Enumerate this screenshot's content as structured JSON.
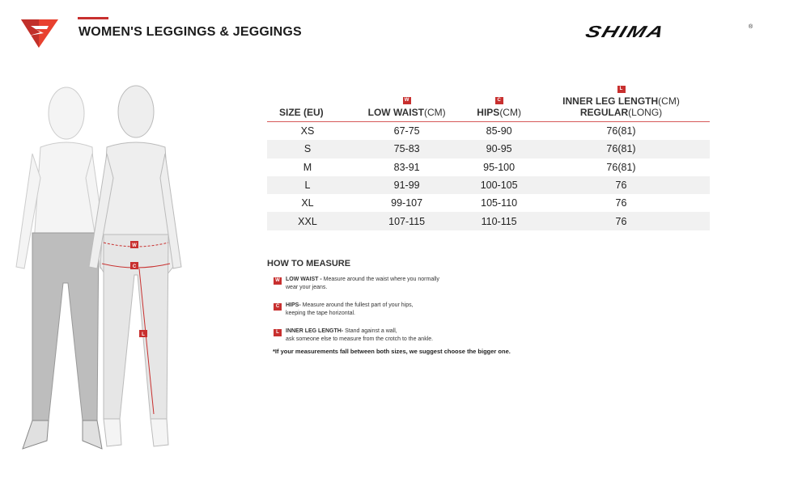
{
  "header": {
    "title": "WOMEN'S LEGGINGS & JEGGINGS",
    "brand": "SHIMA",
    "registered": "®"
  },
  "table": {
    "headers": [
      {
        "badge": "",
        "bold": "SIZE (EU)",
        "normal": ""
      },
      {
        "badge": "W",
        "bold": "LOW WAIST",
        "normal": "(CM)"
      },
      {
        "badge": "C",
        "bold": "HIPS",
        "normal": "(CM)"
      },
      {
        "badge": "L",
        "bold": "INNER LEG LENGTH",
        "normal": "(CM)",
        "bold2": "REGULAR",
        "normal2": "(LONG)"
      }
    ],
    "rows": [
      [
        "XS",
        "67-75",
        "85-90",
        "76(81)"
      ],
      [
        "S",
        "75-83",
        "90-95",
        "76(81)"
      ],
      [
        "M",
        "83-91",
        "95-100",
        "76(81)"
      ],
      [
        "L",
        "91-99",
        "100-105",
        "76"
      ],
      [
        "XL",
        "99-107",
        "105-110",
        "76"
      ],
      [
        "XXL",
        "107-115",
        "110-115",
        "76"
      ]
    ]
  },
  "how": {
    "title": "HOW TO MEASURE",
    "items": [
      {
        "badge": "W",
        "label": "LOW WAIST -",
        "line1": " Measure around the waist where you normally",
        "line2": "wear your jeans."
      },
      {
        "badge": "C",
        "label": "HIPS-",
        "line1": " Measure around the fullest part of your hips,",
        "line2": "keeping the tape horizontal."
      },
      {
        "badge": "L",
        "label": "INNER LEG LENGTH-",
        "line1": " Stand against a wall,",
        "line2": "ask someone else to measure from the crotch to the ankle."
      }
    ],
    "note": "*If your measurements fall between both sizes, we suggest choose the bigger one."
  },
  "figure": {
    "labels": [
      "W",
      "C",
      "L"
    ]
  },
  "colors": {
    "accent": "#c8302f"
  }
}
